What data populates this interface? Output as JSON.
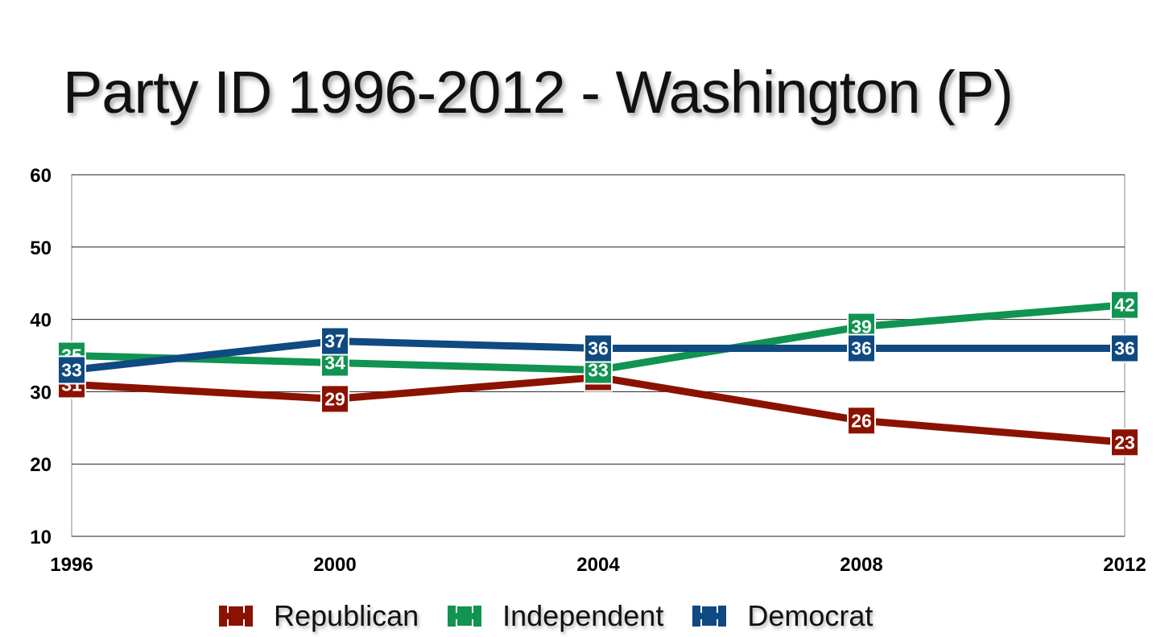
{
  "chart_data": {
    "type": "line",
    "title": "Party ID 1996-2012 - Washington (P)",
    "xlabel": "",
    "ylabel": "",
    "categories": [
      "1996",
      "2000",
      "2004",
      "2008",
      "2012"
    ],
    "ylim": [
      10,
      60
    ],
    "yticks": [
      10,
      20,
      30,
      40,
      50,
      60
    ],
    "grid": true,
    "legend_position": "bottom",
    "series": [
      {
        "name": "Republican",
        "color": "#8b1200",
        "values": [
          31,
          29,
          32,
          26,
          23
        ]
      },
      {
        "name": "Independent",
        "color": "#119351",
        "values": [
          35,
          34,
          33,
          39,
          42
        ]
      },
      {
        "name": "Democrat",
        "color": "#0f4a80",
        "values": [
          33,
          37,
          36,
          36,
          36
        ]
      }
    ]
  }
}
